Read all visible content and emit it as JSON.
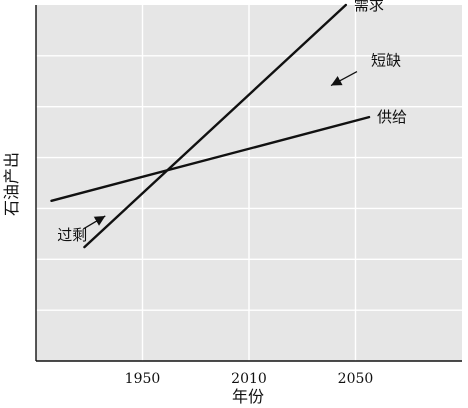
{
  "chart_data": {
    "type": "line",
    "xlabel": "年份",
    "ylabel": "石油产出",
    "x_ticks": [
      "1950",
      "2010",
      "2050"
    ],
    "xlim": [
      1890,
      2110
    ],
    "ylim": [
      0,
      100
    ],
    "grid": true,
    "series": [
      {
        "name": "需求",
        "x": [
          1915,
          2050
        ],
        "y": [
          32,
          100
        ]
      },
      {
        "name": "供给",
        "x": [
          1898,
          2062
        ],
        "y": [
          45,
          68.5
        ]
      }
    ],
    "annotations": [
      {
        "text": "短缺",
        "x": 2063,
        "y": 83
      },
      {
        "text": "过剩",
        "x": 1901,
        "y": 34
      }
    ]
  }
}
